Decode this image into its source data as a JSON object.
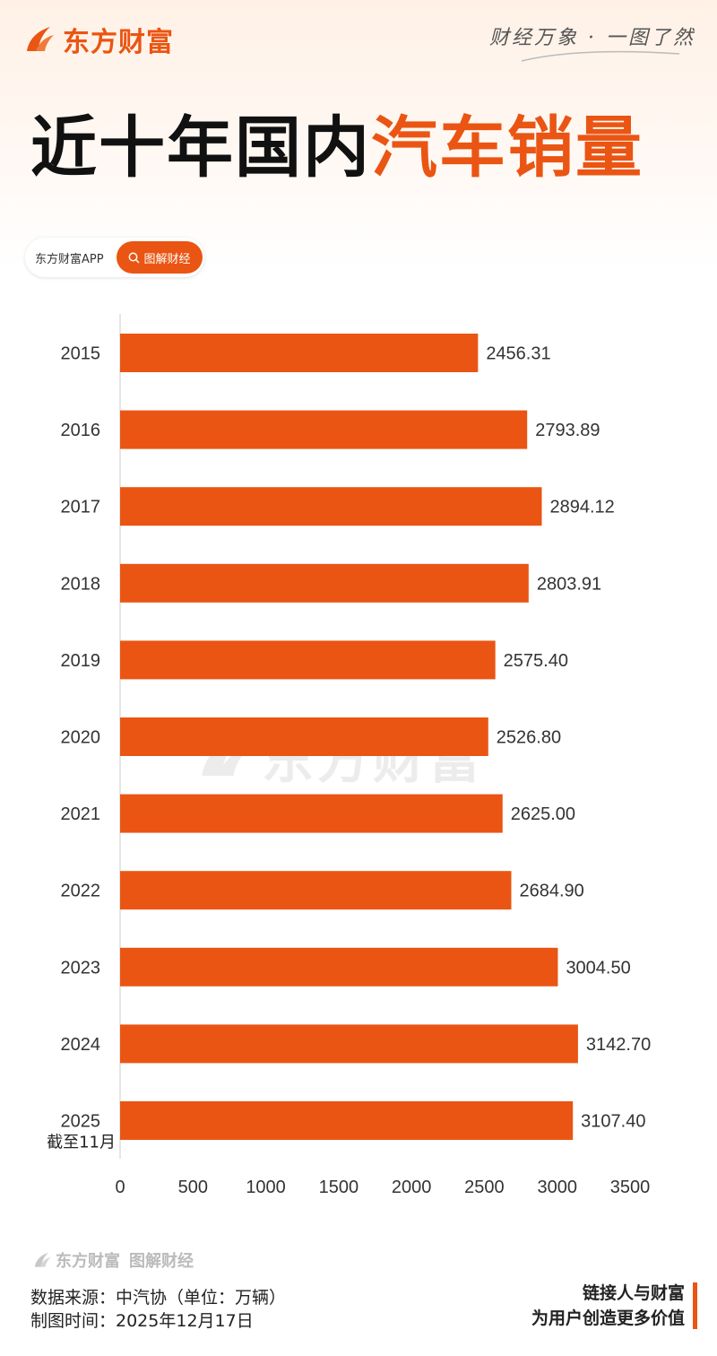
{
  "header": {
    "brand": "东方财富",
    "slogan": "财经万象 · 一图了然"
  },
  "title": {
    "part1": "近十年国内",
    "part2": "汽车销量"
  },
  "tag": {
    "app_label": "东方财富APP",
    "search_label": "图解财经"
  },
  "watermark": "东方财富",
  "colors": {
    "accent": "#ea5513",
    "bar": "#ea5513"
  },
  "chart_data": {
    "type": "bar",
    "orientation": "horizontal",
    "categories": [
      "2015",
      "2016",
      "2017",
      "2018",
      "2019",
      "2020",
      "2021",
      "2022",
      "2023",
      "2024",
      "2025"
    ],
    "category_notes": {
      "2025": "截至11月"
    },
    "values": [
      2456.31,
      2793.89,
      2894.12,
      2803.91,
      2575.4,
      2526.8,
      2625.0,
      2684.9,
      3004.5,
      3142.7,
      3107.4
    ],
    "value_labels": [
      "2456.31",
      "2793.89",
      "2894.12",
      "2803.91",
      "2575.40",
      "2526.80",
      "2625.00",
      "2684.90",
      "3004.50",
      "3142.70",
      "3107.40"
    ],
    "x_ticks": [
      "0",
      "500",
      "1000",
      "1500",
      "2000",
      "2500",
      "3000",
      "3500"
    ],
    "xlim": [
      0,
      3500
    ],
    "grid": false,
    "legend": "none"
  },
  "footer": {
    "brand": "东方财富",
    "column": "图解财经",
    "source": "数据来源：中汽协（单位：万辆）",
    "date": "制图时间：2025年12月17日",
    "tagline1": "链接人与财富",
    "tagline2": "为用户创造更多价值"
  }
}
